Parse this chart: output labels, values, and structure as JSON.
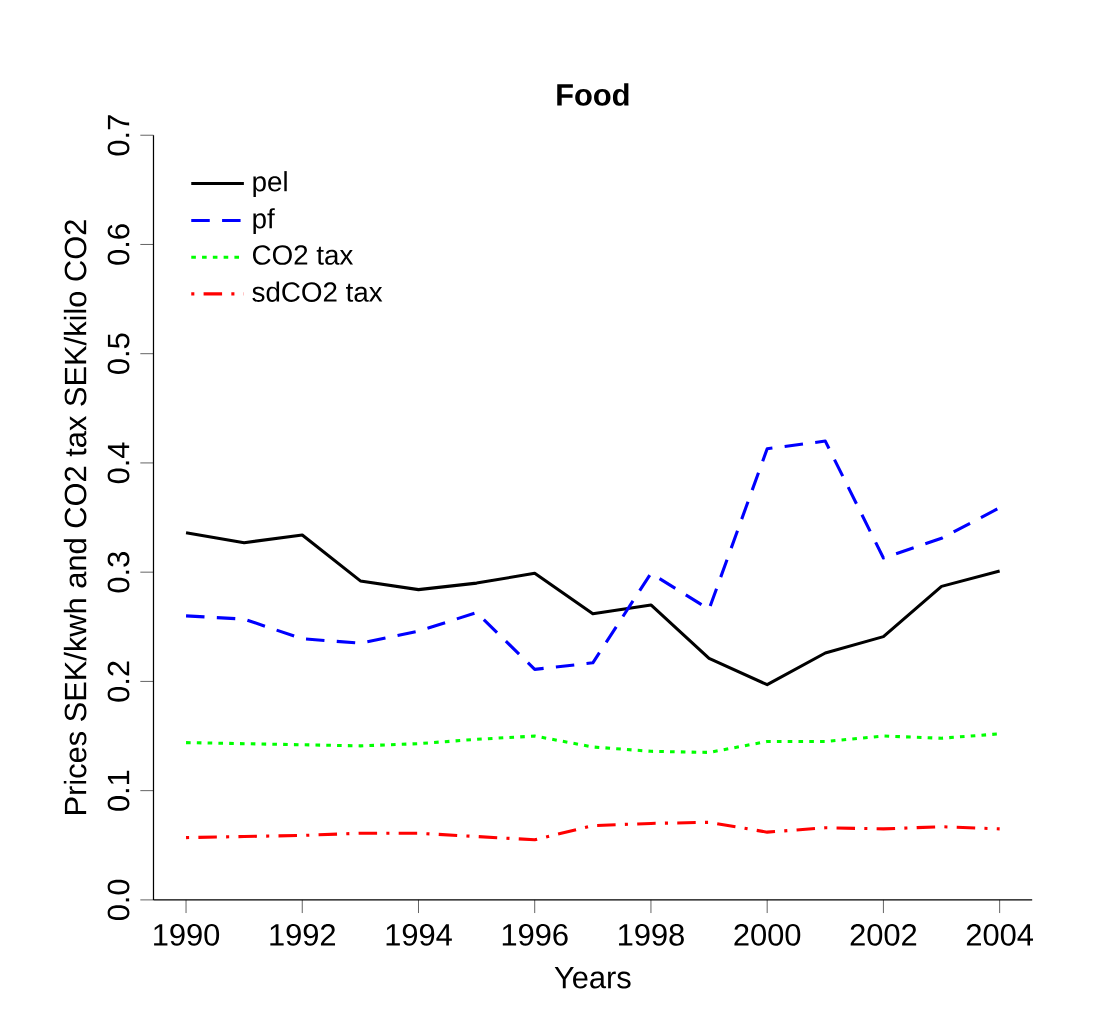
{
  "chart_data": {
    "type": "line",
    "title": "Food",
    "xlabel": "Years",
    "ylabel": "Prices SEK/kwh and CO2 tax SEK/kilo CO2",
    "x": [
      1990,
      1991,
      1992,
      1993,
      1994,
      1995,
      1996,
      1997,
      1998,
      1999,
      2000,
      2001,
      2002,
      2003,
      2004
    ],
    "series": [
      {
        "name": "pel",
        "color": "#000000",
        "line_style": "solid",
        "values": [
          0.336,
          0.327,
          0.334,
          0.292,
          0.284,
          0.29,
          0.299,
          0.262,
          0.27,
          0.221,
          0.197,
          0.226,
          0.241,
          0.287,
          0.301
        ]
      },
      {
        "name": "pf",
        "color": "#0000ff",
        "line_style": "dashed",
        "values": [
          0.26,
          0.257,
          0.239,
          0.235,
          0.246,
          0.263,
          0.211,
          0.217,
          0.299,
          0.266,
          0.413,
          0.42,
          0.313,
          0.331,
          0.359
        ]
      },
      {
        "name": "CO2 tax",
        "color": "#00ff00",
        "line_style": "dotted",
        "values": [
          0.144,
          0.143,
          0.142,
          0.141,
          0.143,
          0.147,
          0.15,
          0.14,
          0.136,
          0.135,
          0.145,
          0.145,
          0.15,
          0.148,
          0.152
        ]
      },
      {
        "name": "sdCO2 tax",
        "color": "#ff0000",
        "line_style": "dashdot",
        "values": [
          0.057,
          0.058,
          0.059,
          0.061,
          0.061,
          0.058,
          0.055,
          0.068,
          0.07,
          0.071,
          0.062,
          0.066,
          0.065,
          0.067,
          0.065
        ]
      }
    ],
    "xlim": [
      1989.44,
      2004.56
    ],
    "ylim": [
      0,
      0.7
    ],
    "xticks": [
      1990,
      1992,
      1994,
      1996,
      1998,
      2000,
      2002,
      2004
    ],
    "yticks": [
      {
        "value": 0,
        "label": "0.0"
      },
      {
        "value": 0.1,
        "label": "0.1"
      },
      {
        "value": 0.2,
        "label": "0.2"
      },
      {
        "value": 0.3,
        "label": "0.3"
      },
      {
        "value": 0.4,
        "label": "0.4"
      },
      {
        "value": 0.5,
        "label": "0.5"
      },
      {
        "value": 0.6,
        "label": "0.6"
      },
      {
        "value": 0.7,
        "label": "0.7"
      }
    ],
    "legend": "top left"
  }
}
